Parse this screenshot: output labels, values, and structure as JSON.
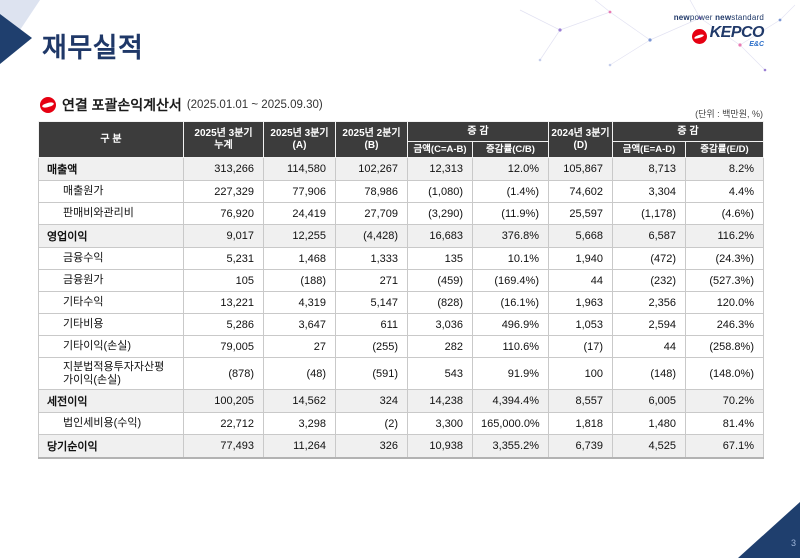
{
  "page": {
    "title": "재무실적",
    "page_number": "3"
  },
  "brand": {
    "tagline": [
      "new",
      "power",
      "new",
      "standard"
    ],
    "logo_name": "KEPCO",
    "logo_sub": "E&C"
  },
  "section": {
    "title": "연결 포괄손익계산서",
    "period": "(2025.01.01 ~ 2025.09.30)",
    "unit_note": "(단위 : 백만원, %)"
  },
  "table": {
    "headers": {
      "category": "구 분",
      "q3_2025_cum": "2025년 3분기\n누계",
      "q3_2025_a": "2025년 3분기\n(A)",
      "q2_2025_b": "2025년 2분기\n(B)",
      "change1": "증 감",
      "amount_cab": "금액(C=A-B)",
      "rate_cb": "증감률(C/B)",
      "q3_2024_d": "2024년 3분기\n(D)",
      "change2": "증 감",
      "amount_ead": "금액(E=A-D)",
      "rate_ed": "증감률(E/D)"
    },
    "rows": [
      {
        "label": "매출액",
        "bold": true,
        "values": [
          "313,266",
          "114,580",
          "102,267",
          "12,313",
          "12.0%",
          "105,867",
          "8,713",
          "8.2%"
        ]
      },
      {
        "label": "매출원가",
        "bold": false,
        "values": [
          "227,329",
          "77,906",
          "78,986",
          "(1,080)",
          "(1.4%)",
          "74,602",
          "3,304",
          "4.4%"
        ]
      },
      {
        "label": "판매비와관리비",
        "bold": false,
        "values": [
          "76,920",
          "24,419",
          "27,709",
          "(3,290)",
          "(11.9%)",
          "25,597",
          "(1,178)",
          "(4.6%)"
        ]
      },
      {
        "label": "영업이익",
        "bold": true,
        "values": [
          "9,017",
          "12,255",
          "(4,428)",
          "16,683",
          "376.8%",
          "5,668",
          "6,587",
          "116.2%"
        ]
      },
      {
        "label": "금융수익",
        "bold": false,
        "values": [
          "5,231",
          "1,468",
          "1,333",
          "135",
          "10.1%",
          "1,940",
          "(472)",
          "(24.3%)"
        ]
      },
      {
        "label": "금융원가",
        "bold": false,
        "values": [
          "105",
          "(188)",
          "271",
          "(459)",
          "(169.4%)",
          "44",
          "(232)",
          "(527.3%)"
        ]
      },
      {
        "label": "기타수익",
        "bold": false,
        "values": [
          "13,221",
          "4,319",
          "5,147",
          "(828)",
          "(16.1%)",
          "1,963",
          "2,356",
          "120.0%"
        ]
      },
      {
        "label": "기타비용",
        "bold": false,
        "values": [
          "5,286",
          "3,647",
          "611",
          "3,036",
          "496.9%",
          "1,053",
          "2,594",
          "246.3%"
        ]
      },
      {
        "label": "기타이익(손실)",
        "bold": false,
        "values": [
          "79,005",
          "27",
          "(255)",
          "282",
          "110.6%",
          "(17)",
          "44",
          "(258.8%)"
        ]
      },
      {
        "label": "지분법적용투자자산평가이익(손실)",
        "bold": false,
        "values": [
          "(878)",
          "(48)",
          "(591)",
          "543",
          "91.9%",
          "100",
          "(148)",
          "(148.0%)"
        ]
      },
      {
        "label": "세전이익",
        "bold": true,
        "values": [
          "100,205",
          "14,562",
          "324",
          "14,238",
          "4,394.4%",
          "8,557",
          "6,005",
          "70.2%"
        ]
      },
      {
        "label": "법인세비용(수익)",
        "bold": false,
        "values": [
          "22,712",
          "3,298",
          "(2)",
          "3,300",
          "165,000.0%",
          "1,818",
          "1,480",
          "81.4%"
        ]
      },
      {
        "label": "당기순이익",
        "bold": true,
        "values": [
          "77,493",
          "11,264",
          "326",
          "10,938",
          "3,355.2%",
          "6,739",
          "4,525",
          "67.1%"
        ]
      }
    ]
  },
  "colors": {
    "title_navy": "#1f3868",
    "accent_red": "#e60012",
    "header_bg": "#3c3c3c",
    "row_highlight": "#f0f0f0",
    "corner_navy": "#1f3f6e",
    "corner_light": "#dde3f0"
  }
}
